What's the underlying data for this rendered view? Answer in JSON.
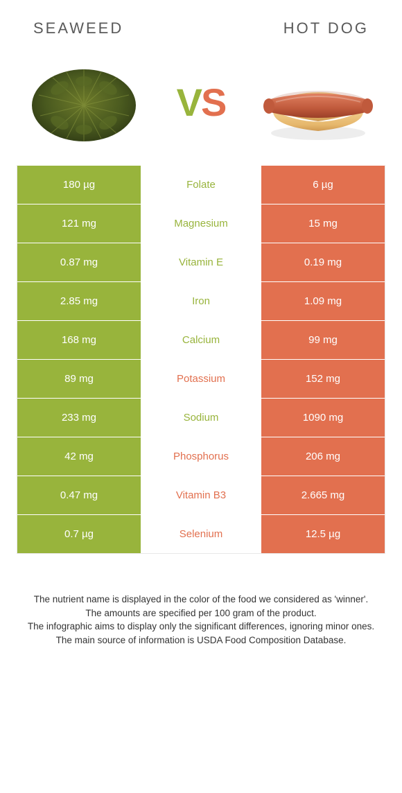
{
  "colors": {
    "left": "#98b43c",
    "right": "#e2704f",
    "text_dark": "#333333",
    "border": "#e8e8e8"
  },
  "header": {
    "left_title": "Seaweed",
    "right_title": "Hot dog",
    "vs_v": "V",
    "vs_s": "S"
  },
  "icons": {
    "left": "seaweed",
    "right": "hotdog"
  },
  "rows": [
    {
      "left": "180 µg",
      "label": "Folate",
      "right": "6 µg",
      "winner": "left"
    },
    {
      "left": "121 mg",
      "label": "Magnesium",
      "right": "15 mg",
      "winner": "left"
    },
    {
      "left": "0.87 mg",
      "label": "Vitamin E",
      "right": "0.19 mg",
      "winner": "left"
    },
    {
      "left": "2.85 mg",
      "label": "Iron",
      "right": "1.09 mg",
      "winner": "left"
    },
    {
      "left": "168 mg",
      "label": "Calcium",
      "right": "99 mg",
      "winner": "left"
    },
    {
      "left": "89 mg",
      "label": "Potassium",
      "right": "152 mg",
      "winner": "right"
    },
    {
      "left": "233 mg",
      "label": "Sodium",
      "right": "1090 mg",
      "winner": "left"
    },
    {
      "left": "42 mg",
      "label": "Phosphorus",
      "right": "206 mg",
      "winner": "right"
    },
    {
      "left": "0.47 mg",
      "label": "Vitamin B3",
      "right": "2.665 mg",
      "winner": "right"
    },
    {
      "left": "0.7 µg",
      "label": "Selenium",
      "right": "12.5 µg",
      "winner": "right"
    }
  ],
  "footer": {
    "line1": "The nutrient name is displayed in the color of the food we considered as 'winner'.",
    "line2": "The amounts are specified per 100 gram of the product.",
    "line3": "The infographic aims to display only the significant differences, ignoring minor ones.",
    "line4": "The main source of information is USDA Food Composition Database."
  }
}
